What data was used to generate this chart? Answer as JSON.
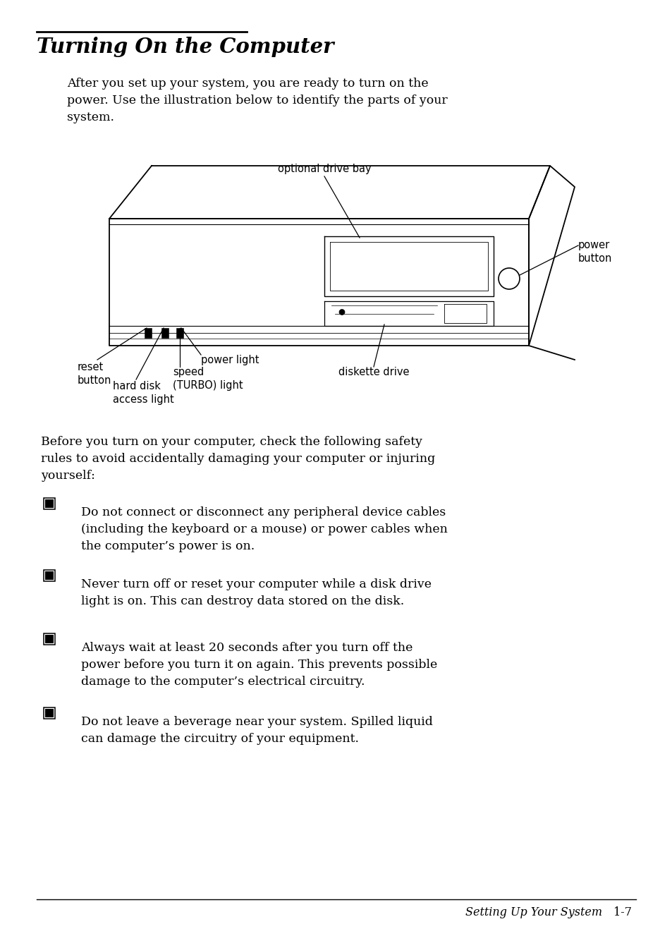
{
  "bg_color": "#ffffff",
  "title": "Turning On the Computer",
  "intro_text": "After you set up your system, you are ready to turn on the\npower. Use the illustration below to identify the parts of your\nsystem.",
  "before_text": "Before you turn on your computer, check the following safety\nrules to avoid accidentally damaging your computer or injuring\nyourself:",
  "bullets": [
    "Do not connect or disconnect any peripheral device cables\n(including the keyboard or a mouse) or power cables when\nthe computer’s power is on.",
    "Never turn off or reset your computer while a disk drive\nlight is on. This can destroy data stored on the disk.",
    "Always wait at least 20 seconds after you turn off the\npower before you turn it on again. This prevents possible\ndamage to the computer’s electrical circuitry.",
    "Do not leave a beverage near your system. Spilled liquid\ncan damage the circuitry of your equipment."
  ],
  "footer_text": "Setting Up Your System",
  "footer_page": "1-7"
}
